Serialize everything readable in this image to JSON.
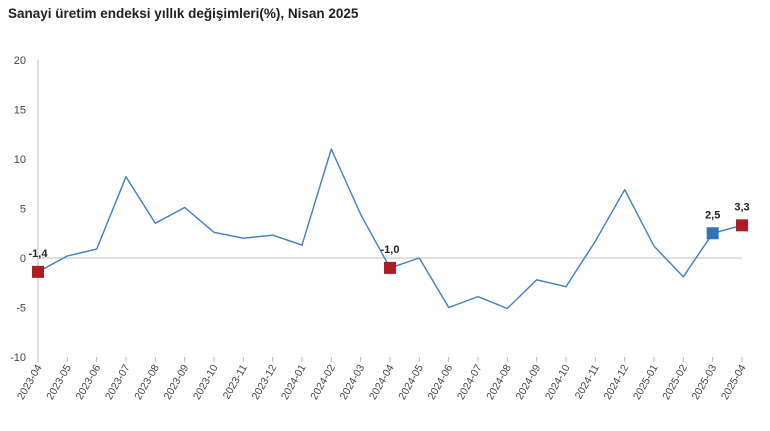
{
  "title": "Sanayi üretim endeksi yıllık değişimleri(%), Nisan 2025",
  "colors": {
    "line": "#3d7fbf",
    "marker_red": "#b01c24",
    "marker_blue": "#2e75b6",
    "axis": "#bfbfbf",
    "text": "#444444"
  },
  "chart_data": {
    "type": "line",
    "title": "Sanayi üretim endeksi yıllık değişimleri(%), Nisan 2025",
    "xlabel": "",
    "ylabel": "",
    "ylim": [
      -10,
      20
    ],
    "yticks": [
      20,
      15,
      10,
      5,
      0,
      -5,
      -10
    ],
    "grid": false,
    "categories": [
      "2023-04",
      "2023-05",
      "2023-06",
      "2023-07",
      "2023-08",
      "2023-09",
      "2023-10",
      "2023-11",
      "2023-12",
      "2024-01",
      "2024-02",
      "2024-03",
      "2024-04",
      "2024-05",
      "2024-06",
      "2024-07",
      "2024-08",
      "2024-09",
      "2024-10",
      "2024-11",
      "2024-12",
      "2025-01",
      "2025-02",
      "2025-03",
      "2025-04"
    ],
    "series": [
      {
        "values": [
          -1.4,
          0.2,
          0.9,
          8.2,
          3.5,
          5.1,
          2.6,
          2.0,
          2.3,
          1.3,
          11.0,
          4.4,
          -1.0,
          0.0,
          -5.0,
          -3.9,
          -5.1,
          -2.2,
          -2.9,
          1.7,
          6.9,
          1.2,
          -1.9,
          2.5,
          3.3
        ]
      }
    ],
    "highlighted_points": [
      {
        "category": "2023-04",
        "value": -1.4,
        "label": "-1,4",
        "marker": "red"
      },
      {
        "category": "2024-04",
        "value": -1.0,
        "label": "-1,0",
        "marker": "red"
      },
      {
        "category": "2025-03",
        "value": 2.5,
        "label": "2,5",
        "marker": "blue"
      },
      {
        "category": "2025-04",
        "value": 3.3,
        "label": "3,3",
        "marker": "red"
      }
    ]
  }
}
